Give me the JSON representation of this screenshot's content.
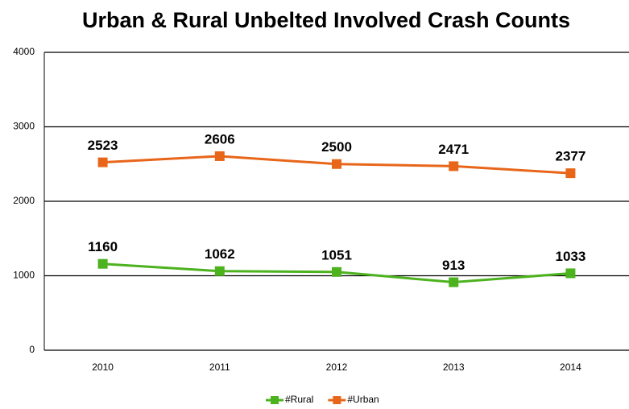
{
  "chart_data": {
    "type": "line",
    "title": "Urban & Rural Unbelted Involved Crash Counts",
    "categories": [
      "2010",
      "2011",
      "2012",
      "2013",
      "2014"
    ],
    "series": [
      {
        "name": "#Rural",
        "color": "#4cb21e",
        "values": [
          1160,
          1062,
          1051,
          913,
          1033
        ]
      },
      {
        "name": "#Urban",
        "color": "#e8661a",
        "values": [
          2523,
          2606,
          2500,
          2471,
          2377
        ]
      }
    ],
    "ylim": [
      0,
      4000
    ],
    "yticks": [
      0,
      1000,
      2000,
      3000,
      4000
    ],
    "grid": true,
    "legend": "bottom"
  }
}
